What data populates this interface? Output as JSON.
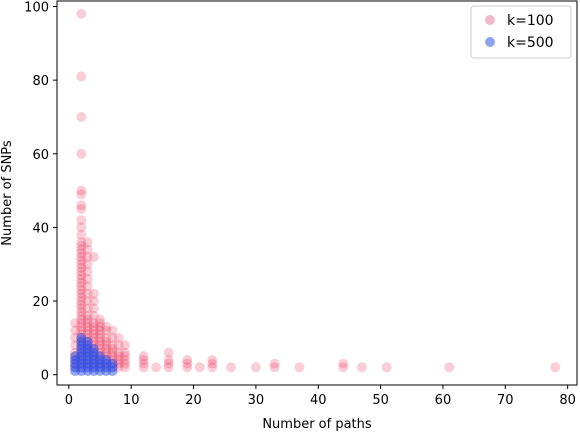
{
  "chart_data": {
    "type": "scatter",
    "title": "",
    "xlabel": "Number of paths",
    "ylabel": "Number of SNPs",
    "xlim": [
      -1.9,
      81.5
    ],
    "ylim": [
      -2.8,
      101.5
    ],
    "xticks": [
      0,
      10,
      20,
      30,
      40,
      50,
      60,
      70,
      80
    ],
    "yticks": [
      0,
      20,
      40,
      60,
      80,
      100
    ],
    "grid": false,
    "legend_position": "top-right",
    "series": [
      {
        "name": "k=100",
        "color": "#e8224a",
        "marker_color_light": "#f4b8cc",
        "points": [
          [
            2,
            98
          ],
          [
            2,
            81
          ],
          [
            2,
            70
          ],
          [
            2,
            60
          ],
          [
            2,
            50
          ],
          [
            2,
            49
          ],
          [
            2,
            46
          ],
          [
            2,
            45
          ],
          [
            2,
            42
          ],
          [
            2,
            40
          ],
          [
            2,
            38
          ],
          [
            2,
            36
          ],
          [
            2,
            35
          ],
          [
            2,
            34
          ],
          [
            2,
            33
          ],
          [
            2,
            32
          ],
          [
            2,
            31
          ],
          [
            2,
            30
          ],
          [
            2,
            29
          ],
          [
            2,
            28
          ],
          [
            2,
            27
          ],
          [
            2,
            26
          ],
          [
            2,
            25
          ],
          [
            2,
            24
          ],
          [
            2,
            23
          ],
          [
            2,
            22
          ],
          [
            2,
            21
          ],
          [
            2,
            20
          ],
          [
            2,
            19
          ],
          [
            2,
            18
          ],
          [
            2,
            17
          ],
          [
            2,
            16
          ],
          [
            2,
            15
          ],
          [
            2,
            14
          ],
          [
            2,
            13
          ],
          [
            2,
            12
          ],
          [
            2,
            11
          ],
          [
            2,
            10
          ],
          [
            2,
            9
          ],
          [
            2,
            8
          ],
          [
            2,
            7
          ],
          [
            2,
            6
          ],
          [
            2,
            5
          ],
          [
            2,
            4
          ],
          [
            2,
            3
          ],
          [
            2,
            2
          ],
          [
            3,
            36
          ],
          [
            3,
            34
          ],
          [
            3,
            32
          ],
          [
            3,
            30
          ],
          [
            3,
            28
          ],
          [
            3,
            26
          ],
          [
            3,
            24
          ],
          [
            3,
            22
          ],
          [
            3,
            20
          ],
          [
            3,
            18
          ],
          [
            3,
            16
          ],
          [
            3,
            15
          ],
          [
            3,
            14
          ],
          [
            3,
            13
          ],
          [
            3,
            12
          ],
          [
            3,
            11
          ],
          [
            3,
            10
          ],
          [
            3,
            9
          ],
          [
            3,
            8
          ],
          [
            3,
            7
          ],
          [
            3,
            6
          ],
          [
            3,
            5
          ],
          [
            3,
            4
          ],
          [
            3,
            3
          ],
          [
            3,
            2
          ],
          [
            4,
            32
          ],
          [
            4,
            22
          ],
          [
            4,
            20
          ],
          [
            4,
            18
          ],
          [
            4,
            16
          ],
          [
            4,
            14
          ],
          [
            4,
            13
          ],
          [
            4,
            12
          ],
          [
            4,
            11
          ],
          [
            4,
            10
          ],
          [
            4,
            9
          ],
          [
            4,
            8
          ],
          [
            4,
            7
          ],
          [
            4,
            6
          ],
          [
            4,
            5
          ],
          [
            4,
            4
          ],
          [
            4,
            3
          ],
          [
            4,
            2
          ],
          [
            5,
            15
          ],
          [
            5,
            14
          ],
          [
            5,
            13
          ],
          [
            5,
            12
          ],
          [
            5,
            11
          ],
          [
            5,
            10
          ],
          [
            5,
            9
          ],
          [
            5,
            8
          ],
          [
            5,
            7
          ],
          [
            5,
            6
          ],
          [
            5,
            5
          ],
          [
            5,
            4
          ],
          [
            5,
            3
          ],
          [
            5,
            2
          ],
          [
            6,
            13
          ],
          [
            6,
            12
          ],
          [
            6,
            10
          ],
          [
            6,
            9
          ],
          [
            6,
            8
          ],
          [
            6,
            7
          ],
          [
            6,
            6
          ],
          [
            6,
            5
          ],
          [
            6,
            4
          ],
          [
            6,
            3
          ],
          [
            6,
            2
          ],
          [
            7,
            12
          ],
          [
            7,
            10
          ],
          [
            7,
            8
          ],
          [
            7,
            7
          ],
          [
            7,
            6
          ],
          [
            7,
            5
          ],
          [
            7,
            4
          ],
          [
            7,
            3
          ],
          [
            7,
            2
          ],
          [
            8,
            10
          ],
          [
            8,
            8
          ],
          [
            8,
            6
          ],
          [
            8,
            5
          ],
          [
            8,
            4
          ],
          [
            8,
            3
          ],
          [
            8,
            2
          ],
          [
            9,
            8
          ],
          [
            9,
            6
          ],
          [
            9,
            5
          ],
          [
            9,
            4
          ],
          [
            9,
            3
          ],
          [
            9,
            2
          ],
          [
            1,
            14
          ],
          [
            1,
            12
          ],
          [
            1,
            10
          ],
          [
            1,
            8
          ],
          [
            1,
            6
          ],
          [
            1,
            5
          ],
          [
            1,
            4
          ],
          [
            1,
            3
          ],
          [
            1,
            2
          ],
          [
            12,
            5
          ],
          [
            12,
            4
          ],
          [
            12,
            3
          ],
          [
            12,
            2
          ],
          [
            14,
            2
          ],
          [
            16,
            6
          ],
          [
            16,
            4
          ],
          [
            16,
            3
          ],
          [
            16,
            2
          ],
          [
            19,
            4
          ],
          [
            19,
            3
          ],
          [
            19,
            2
          ],
          [
            21,
            2
          ],
          [
            23,
            4
          ],
          [
            23,
            3
          ],
          [
            23,
            2
          ],
          [
            26,
            2
          ],
          [
            30,
            2
          ],
          [
            33,
            3
          ],
          [
            33,
            2
          ],
          [
            37,
            2
          ],
          [
            44,
            3
          ],
          [
            44,
            2
          ],
          [
            47,
            2
          ],
          [
            51,
            2
          ],
          [
            61,
            2
          ],
          [
            78,
            2
          ]
        ]
      },
      {
        "name": "k=500",
        "color": "#2f52e8",
        "marker_color_light": "#8ea3ee",
        "points": [
          [
            2,
            10
          ],
          [
            2,
            9
          ],
          [
            2,
            8
          ],
          [
            2,
            7
          ],
          [
            2,
            6
          ],
          [
            2,
            5
          ],
          [
            2,
            4
          ],
          [
            2,
            3
          ],
          [
            2,
            2
          ],
          [
            2,
            1
          ],
          [
            3,
            9
          ],
          [
            3,
            8
          ],
          [
            3,
            7
          ],
          [
            3,
            6
          ],
          [
            3,
            5
          ],
          [
            3,
            4
          ],
          [
            3,
            3
          ],
          [
            3,
            2
          ],
          [
            3,
            1
          ],
          [
            4,
            7
          ],
          [
            4,
            6
          ],
          [
            4,
            5
          ],
          [
            4,
            4
          ],
          [
            4,
            3
          ],
          [
            4,
            2
          ],
          [
            4,
            1
          ],
          [
            5,
            5
          ],
          [
            5,
            4
          ],
          [
            5,
            3
          ],
          [
            5,
            2
          ],
          [
            5,
            1
          ],
          [
            6,
            4
          ],
          [
            6,
            3
          ],
          [
            6,
            2
          ],
          [
            6,
            1
          ],
          [
            7,
            3
          ],
          [
            7,
            2
          ],
          [
            7,
            1
          ],
          [
            1,
            5
          ],
          [
            1,
            4
          ],
          [
            1,
            3
          ],
          [
            1,
            2
          ],
          [
            1,
            1
          ]
        ]
      }
    ]
  }
}
